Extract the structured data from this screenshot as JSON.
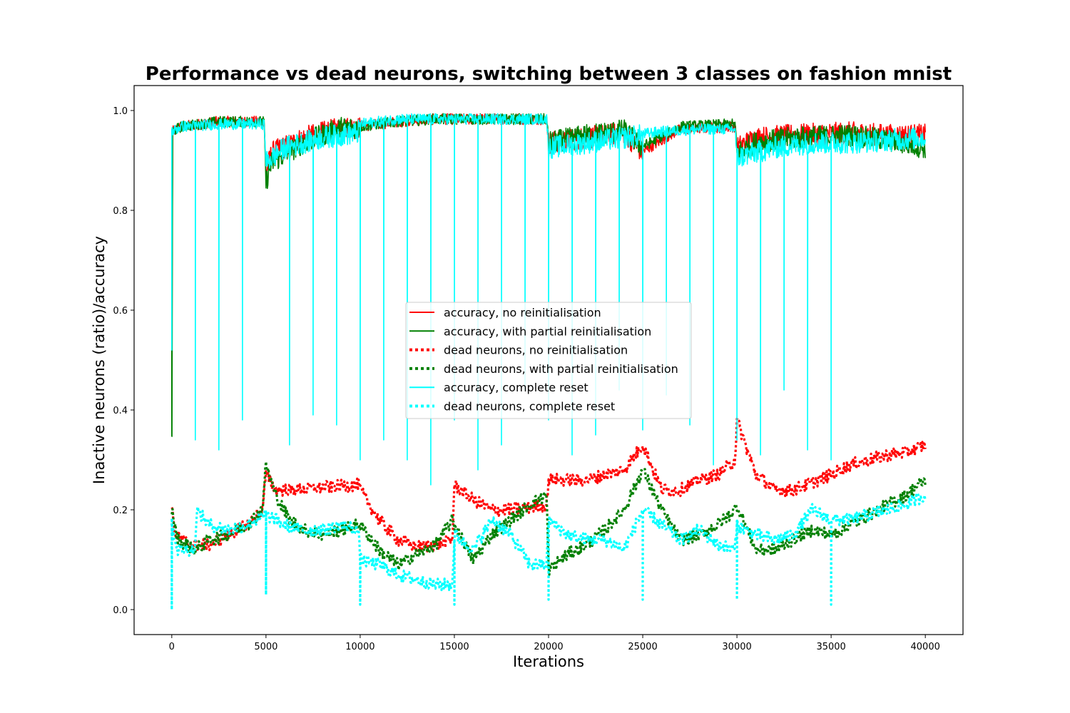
{
  "chart_data": {
    "type": "line",
    "title": "Performance vs dead neurons, switching between 3 classes on fashion mnist",
    "xlabel": "Iterations",
    "ylabel": "Inactive neurons (ratio)/accuracy",
    "xlim": [
      -2000,
      42000
    ],
    "ylim": [
      -0.05,
      1.05
    ],
    "xticks": [
      0,
      5000,
      10000,
      15000,
      20000,
      25000,
      30000,
      35000,
      40000
    ],
    "xtick_labels": [
      "0",
      "5000",
      "10000",
      "15000",
      "20000",
      "25000",
      "30000",
      "35000",
      "40000"
    ],
    "yticks": [
      0.0,
      0.2,
      0.4,
      0.6,
      0.8,
      1.0
    ],
    "ytick_labels": [
      "0.0",
      "0.2",
      "0.4",
      "0.6",
      "0.8",
      "1.0"
    ],
    "grid": false,
    "legend_position": "center",
    "series": [
      {
        "name": "accuracy, no reinitialisation",
        "color": "#ff0000",
        "style": "solid",
        "points": [
          [
            0,
            0.52
          ],
          [
            50,
            0.96
          ],
          [
            500,
            0.97
          ],
          [
            2500,
            0.98
          ],
          [
            4900,
            0.98
          ],
          [
            5000,
            0.88
          ],
          [
            5300,
            0.92
          ],
          [
            7000,
            0.95
          ],
          [
            9000,
            0.97
          ],
          [
            9900,
            0.97
          ],
          [
            10000,
            0.97
          ],
          [
            12000,
            0.98
          ],
          [
            14000,
            0.985
          ],
          [
            16000,
            0.985
          ],
          [
            18000,
            0.985
          ],
          [
            19900,
            0.985
          ],
          [
            20000,
            0.94
          ],
          [
            22000,
            0.95
          ],
          [
            24000,
            0.96
          ],
          [
            25000,
            0.92
          ],
          [
            27000,
            0.965
          ],
          [
            29900,
            0.97
          ],
          [
            30000,
            0.93
          ],
          [
            31000,
            0.95
          ],
          [
            33000,
            0.955
          ],
          [
            36000,
            0.96
          ],
          [
            38000,
            0.955
          ],
          [
            40000,
            0.955
          ]
        ]
      },
      {
        "name": "accuracy, with partial reinitialisation",
        "color": "#008000",
        "style": "solid",
        "points": [
          [
            0,
            0.35
          ],
          [
            50,
            0.96
          ],
          [
            500,
            0.97
          ],
          [
            2500,
            0.98
          ],
          [
            4900,
            0.98
          ],
          [
            5000,
            0.86
          ],
          [
            5300,
            0.9
          ],
          [
            7000,
            0.94
          ],
          [
            9000,
            0.97
          ],
          [
            9900,
            0.97
          ],
          [
            10000,
            0.97
          ],
          [
            12000,
            0.98
          ],
          [
            14000,
            0.985
          ],
          [
            16000,
            0.985
          ],
          [
            18000,
            0.985
          ],
          [
            19900,
            0.985
          ],
          [
            20000,
            0.94
          ],
          [
            22000,
            0.955
          ],
          [
            24000,
            0.965
          ],
          [
            25000,
            0.93
          ],
          [
            27000,
            0.97
          ],
          [
            29900,
            0.975
          ],
          [
            30000,
            0.92
          ],
          [
            31000,
            0.94
          ],
          [
            33000,
            0.95
          ],
          [
            36000,
            0.955
          ],
          [
            38000,
            0.945
          ],
          [
            40000,
            0.93
          ]
        ]
      },
      {
        "name": "dead neurons, no reinitialisation",
        "color": "#ff0000",
        "style": "dotted",
        "points": [
          [
            0,
            0.2
          ],
          [
            200,
            0.15
          ],
          [
            1000,
            0.13
          ],
          [
            2000,
            0.13
          ],
          [
            3000,
            0.15
          ],
          [
            4000,
            0.17
          ],
          [
            4800,
            0.2
          ],
          [
            5000,
            0.27
          ],
          [
            5500,
            0.24
          ],
          [
            6500,
            0.24
          ],
          [
            8000,
            0.245
          ],
          [
            9900,
            0.25
          ],
          [
            10000,
            0.24
          ],
          [
            11000,
            0.18
          ],
          [
            12000,
            0.14
          ],
          [
            13000,
            0.125
          ],
          [
            14000,
            0.13
          ],
          [
            14900,
            0.14
          ],
          [
            15000,
            0.25
          ],
          [
            16000,
            0.22
          ],
          [
            17000,
            0.2
          ],
          [
            18000,
            0.2
          ],
          [
            19000,
            0.205
          ],
          [
            19900,
            0.21
          ],
          [
            20000,
            0.26
          ],
          [
            22000,
            0.26
          ],
          [
            24000,
            0.28
          ],
          [
            25000,
            0.33
          ],
          [
            26000,
            0.24
          ],
          [
            27000,
            0.24
          ],
          [
            28000,
            0.26
          ],
          [
            29000,
            0.27
          ],
          [
            29900,
            0.3
          ],
          [
            30000,
            0.38
          ],
          [
            31000,
            0.27
          ],
          [
            32000,
            0.24
          ],
          [
            33000,
            0.24
          ],
          [
            34000,
            0.255
          ],
          [
            35000,
            0.27
          ],
          [
            36000,
            0.29
          ],
          [
            37000,
            0.3
          ],
          [
            38000,
            0.31
          ],
          [
            39000,
            0.315
          ],
          [
            40000,
            0.33
          ]
        ]
      },
      {
        "name": "dead neurons, with partial reinitialisation",
        "color": "#008000",
        "style": "dotted",
        "points": [
          [
            0,
            0.2
          ],
          [
            300,
            0.14
          ],
          [
            800,
            0.13
          ],
          [
            1250,
            0.12
          ],
          [
            2000,
            0.14
          ],
          [
            3000,
            0.15
          ],
          [
            4000,
            0.17
          ],
          [
            4800,
            0.2
          ],
          [
            5000,
            0.29
          ],
          [
            5500,
            0.23
          ],
          [
            6250,
            0.18
          ],
          [
            7000,
            0.16
          ],
          [
            8000,
            0.15
          ],
          [
            9000,
            0.16
          ],
          [
            9900,
            0.17
          ],
          [
            10000,
            0.17
          ],
          [
            11000,
            0.12
          ],
          [
            12000,
            0.09
          ],
          [
            13000,
            0.11
          ],
          [
            14000,
            0.13
          ],
          [
            14900,
            0.18
          ],
          [
            15000,
            0.17
          ],
          [
            16000,
            0.1
          ],
          [
            17000,
            0.15
          ],
          [
            18000,
            0.18
          ],
          [
            19000,
            0.21
          ],
          [
            19900,
            0.23
          ],
          [
            20000,
            0.08
          ],
          [
            21000,
            0.11
          ],
          [
            22000,
            0.13
          ],
          [
            23000,
            0.16
          ],
          [
            24000,
            0.2
          ],
          [
            25000,
            0.28
          ],
          [
            26000,
            0.2
          ],
          [
            27000,
            0.14
          ],
          [
            28000,
            0.15
          ],
          [
            29000,
            0.17
          ],
          [
            29900,
            0.2
          ],
          [
            30000,
            0.21
          ],
          [
            31000,
            0.12
          ],
          [
            32000,
            0.12
          ],
          [
            33000,
            0.14
          ],
          [
            34000,
            0.16
          ],
          [
            35000,
            0.15
          ],
          [
            36000,
            0.17
          ],
          [
            37000,
            0.19
          ],
          [
            38000,
            0.21
          ],
          [
            39000,
            0.23
          ],
          [
            40000,
            0.26
          ]
        ]
      },
      {
        "name": "accuracy, complete reset",
        "color": "#00ffff",
        "style": "solid",
        "points": [
          [
            0,
            0.96
          ],
          [
            500,
            0.97
          ],
          [
            2500,
            0.975
          ],
          [
            4900,
            0.975
          ],
          [
            5000,
            0.9
          ],
          [
            6000,
            0.93
          ],
          [
            8000,
            0.95
          ],
          [
            9900,
            0.96
          ],
          [
            10000,
            0.975
          ],
          [
            12000,
            0.985
          ],
          [
            14000,
            0.985
          ],
          [
            16000,
            0.985
          ],
          [
            18000,
            0.985
          ],
          [
            19900,
            0.985
          ],
          [
            20000,
            0.93
          ],
          [
            22000,
            0.94
          ],
          [
            24000,
            0.95
          ],
          [
            26000,
            0.96
          ],
          [
            28000,
            0.965
          ],
          [
            29900,
            0.965
          ],
          [
            30000,
            0.91
          ],
          [
            32000,
            0.93
          ],
          [
            34000,
            0.94
          ],
          [
            36000,
            0.94
          ],
          [
            38000,
            0.945
          ],
          [
            40000,
            0.95
          ]
        ]
      },
      {
        "name": "dead neurons, complete reset",
        "color": "#00ffff",
        "style": "dotted",
        "points": [
          [
            0,
            0.17
          ],
          [
            300,
            0.12
          ],
          [
            1250,
            0.12
          ],
          [
            1300,
            0.2
          ],
          [
            2000,
            0.17
          ],
          [
            3000,
            0.16
          ],
          [
            4000,
            0.17
          ],
          [
            5000,
            0.19
          ],
          [
            6000,
            0.17
          ],
          [
            7000,
            0.16
          ],
          [
            8000,
            0.16
          ],
          [
            9000,
            0.17
          ],
          [
            9900,
            0.16
          ],
          [
            10000,
            0.1
          ],
          [
            11000,
            0.09
          ],
          [
            12000,
            0.07
          ],
          [
            13000,
            0.06
          ],
          [
            14000,
            0.05
          ],
          [
            14900,
            0.05
          ],
          [
            15000,
            0.15
          ],
          [
            16000,
            0.12
          ],
          [
            17000,
            0.18
          ],
          [
            18000,
            0.15
          ],
          [
            19000,
            0.09
          ],
          [
            19900,
            0.09
          ],
          [
            20000,
            0.18
          ],
          [
            21000,
            0.15
          ],
          [
            22000,
            0.14
          ],
          [
            23000,
            0.14
          ],
          [
            24000,
            0.12
          ],
          [
            25000,
            0.2
          ],
          [
            26000,
            0.17
          ],
          [
            27000,
            0.14
          ],
          [
            28000,
            0.16
          ],
          [
            29000,
            0.13
          ],
          [
            29900,
            0.12
          ],
          [
            30000,
            0.17
          ],
          [
            31000,
            0.15
          ],
          [
            32000,
            0.14
          ],
          [
            33000,
            0.15
          ],
          [
            34000,
            0.2
          ],
          [
            35000,
            0.18
          ],
          [
            36000,
            0.18
          ],
          [
            37000,
            0.19
          ],
          [
            38000,
            0.2
          ],
          [
            39000,
            0.21
          ],
          [
            40000,
            0.23
          ]
        ]
      }
    ],
    "reset_spikes": {
      "description_free": true,
      "x": [
        0,
        1250,
        2500,
        3750,
        5000,
        6250,
        7500,
        8750,
        10000,
        11250,
        12500,
        13750,
        15000,
        16250,
        17500,
        18750,
        20000,
        21250,
        22500,
        23750,
        25000,
        26250,
        27500,
        28750,
        30000,
        31250,
        32500,
        33750,
        35000
      ],
      "accuracy_min": [
        0.52,
        0.34,
        0.32,
        0.38,
        0.9,
        0.33,
        0.39,
        0.37,
        0.3,
        0.34,
        0.3,
        0.25,
        0.38,
        0.28,
        0.33,
        0.44,
        0.38,
        0.31,
        0.35,
        0.44,
        0.36,
        0.43,
        0.37,
        0.29,
        0.34,
        0.31,
        0.44,
        0.32,
        0.3
      ],
      "dead_min": [
        0.0,
        0.01,
        0.01,
        0.01,
        0.03,
        0.02,
        0.01,
        0.02,
        0.01,
        0.01,
        0.01,
        0.01,
        0.01,
        0.01,
        0.01,
        0.01,
        0.02,
        0.01,
        0.01,
        0.02,
        0.02,
        0.02,
        0.01,
        0.01,
        0.02,
        0.01,
        0.01,
        0.02,
        0.01
      ]
    }
  }
}
